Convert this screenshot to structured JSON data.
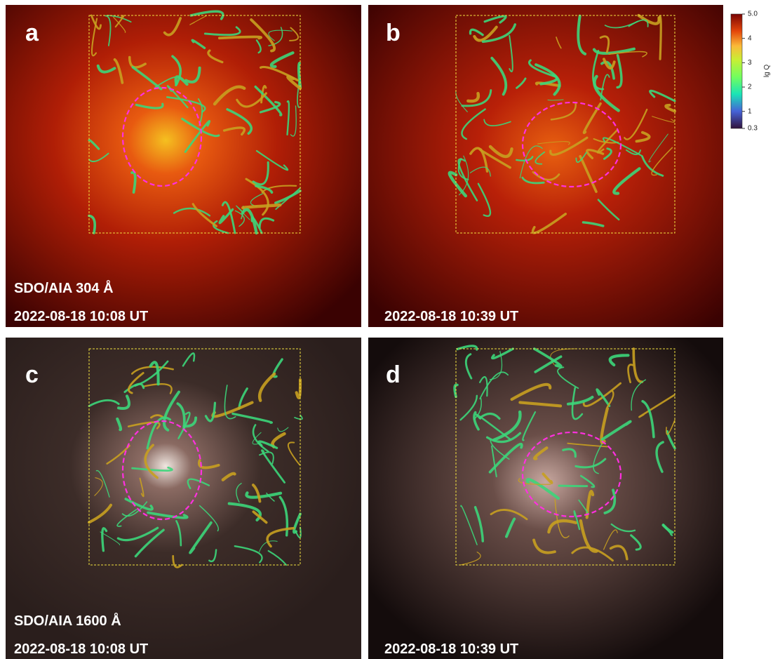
{
  "panels": [
    {
      "letter": "a",
      "instrument": "SDO/AIA 304 Å",
      "time": "2022-08-18 10:08 UT"
    },
    {
      "letter": "b",
      "time": "2022-08-18 10:39 UT"
    },
    {
      "letter": "c",
      "instrument": "SDO/AIA 1600 Å",
      "time": "2022-08-18 10:08 UT"
    },
    {
      "letter": "d",
      "time": "2022-08-18 10:39 UT"
    }
  ],
  "colorbar": {
    "label": "lg Q",
    "ticks": [
      {
        "value": 5,
        "label": "5.0"
      },
      4,
      3,
      2,
      1,
      0.3
    ]
  }
}
